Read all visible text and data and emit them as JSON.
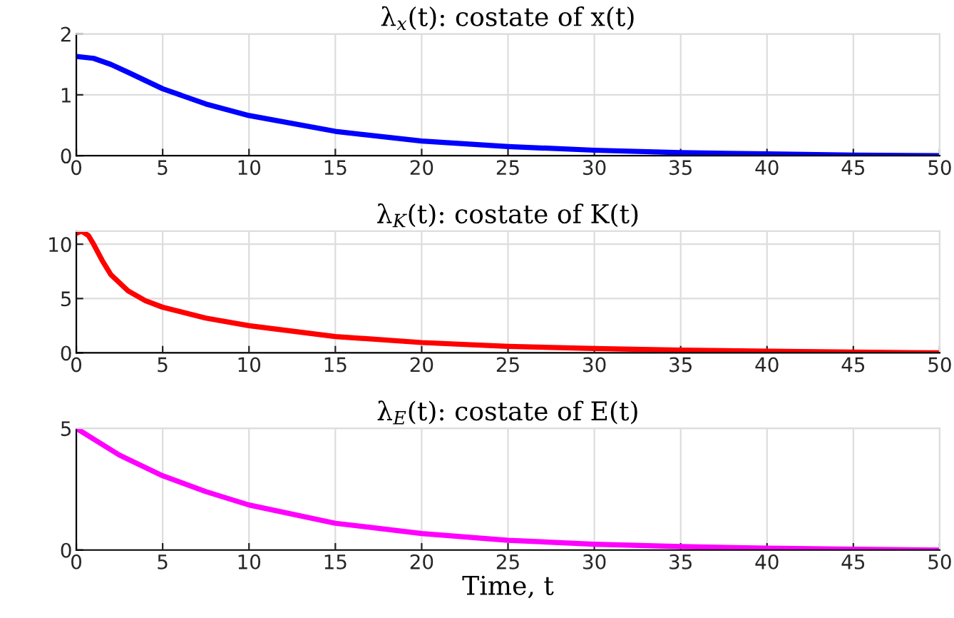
{
  "chart_data": [
    {
      "type": "line",
      "title": "λ$_{x}$(t): costate of x(t)",
      "xlim": [
        0,
        50
      ],
      "xticks": [
        0,
        5,
        10,
        15,
        20,
        25,
        30,
        35,
        40,
        45,
        50
      ],
      "ylim": [
        0,
        2
      ],
      "yticks": [
        0,
        1,
        2
      ],
      "grid": true,
      "series": [
        {
          "color": "#0000ff",
          "x": [
            0,
            1,
            2,
            3,
            5,
            7.5,
            10,
            15,
            20,
            25,
            30,
            35,
            40,
            45,
            50
          ],
          "values": [
            1.63,
            1.6,
            1.5,
            1.37,
            1.1,
            0.85,
            0.66,
            0.4,
            0.24,
            0.15,
            0.09,
            0.05,
            0.03,
            0.01,
            0.0
          ]
        }
      ]
    },
    {
      "type": "line",
      "title": "λ$_{K}$(t): costate of K(t)",
      "xlim": [
        0,
        50
      ],
      "xticks": [
        0,
        5,
        10,
        15,
        20,
        25,
        30,
        35,
        40,
        45,
        50
      ],
      "ylim": [
        0,
        11.2
      ],
      "yticks": [
        0,
        5,
        10
      ],
      "grid": true,
      "series": [
        {
          "color": "#ff0000",
          "x": [
            0,
            0.3,
            0.7,
            1,
            1.5,
            2,
            3,
            4,
            5,
            7.5,
            10,
            15,
            20,
            25,
            30,
            35,
            40,
            45,
            50
          ],
          "values": [
            11.0,
            11.2,
            10.8,
            10.0,
            8.5,
            7.2,
            5.7,
            4.8,
            4.2,
            3.2,
            2.5,
            1.5,
            0.95,
            0.6,
            0.4,
            0.25,
            0.15,
            0.07,
            0.0
          ]
        }
      ]
    },
    {
      "type": "line",
      "title": "λ$_{E}$(t): costate of E(t)",
      "xlabel": "Time, t",
      "xlim": [
        0,
        50
      ],
      "xticks": [
        0,
        5,
        10,
        15,
        20,
        25,
        30,
        35,
        40,
        45,
        50
      ],
      "ylim": [
        0,
        5
      ],
      "yticks": [
        0,
        5
      ],
      "grid": true,
      "series": [
        {
          "color": "#ff00ff",
          "x": [
            0,
            2.5,
            5,
            7.5,
            10,
            15,
            20,
            25,
            30,
            35,
            40,
            45,
            50
          ],
          "values": [
            5.0,
            3.9,
            3.05,
            2.4,
            1.85,
            1.1,
            0.68,
            0.4,
            0.24,
            0.14,
            0.08,
            0.03,
            0.0
          ]
        }
      ]
    }
  ]
}
